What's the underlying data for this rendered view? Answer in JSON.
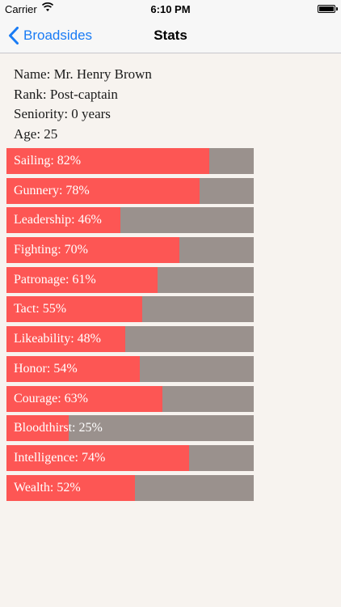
{
  "status_bar": {
    "carrier": "Carrier",
    "time": "6:10 PM"
  },
  "nav": {
    "back_label": "Broadsides",
    "title": "Stats"
  },
  "officer": {
    "name": "Name: Mr. Henry Brown",
    "rank": "Rank: Post-captain",
    "seniority": "Seniority: 0 years",
    "age": "Age: 25"
  },
  "colors": {
    "bar_fill": "#fd5654",
    "bar_track": "#9a918d",
    "tint": "#1a7cf5"
  },
  "stats": [
    {
      "label": "Sailing: 82%",
      "value": 82
    },
    {
      "label": "Gunnery: 78%",
      "value": 78
    },
    {
      "label": "Leadership: 46%",
      "value": 46
    },
    {
      "label": "Fighting: 70%",
      "value": 70
    },
    {
      "label": "Patronage: 61%",
      "value": 61
    },
    {
      "label": "Tact: 55%",
      "value": 55
    },
    {
      "label": "Likeability: 48%",
      "value": 48
    },
    {
      "label": "Honor: 54%",
      "value": 54
    },
    {
      "label": "Courage: 63%",
      "value": 63
    },
    {
      "label": "Bloodthirst: 25%",
      "value": 25
    },
    {
      "label": "Intelligence: 74%",
      "value": 74
    },
    {
      "label": "Wealth: 52%",
      "value": 52
    }
  ]
}
